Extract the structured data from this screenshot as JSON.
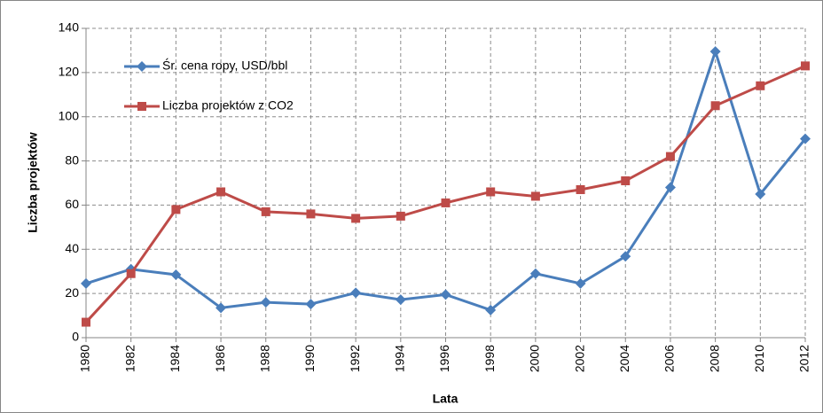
{
  "chart_data": {
    "type": "line",
    "categories": [
      "1980",
      "1982",
      "1984",
      "1986",
      "1988",
      "1990",
      "1992",
      "1994",
      "1996",
      "1998",
      "2000",
      "2002",
      "2004",
      "2006",
      "2008",
      "2010",
      "2012"
    ],
    "series": [
      {
        "name": "Śr. cena ropy, USD/bbl",
        "color": "#4a7ebb",
        "marker": "diamond",
        "values": [
          24.5,
          31,
          28.5,
          13.5,
          16,
          15.2,
          20.3,
          17.2,
          19.5,
          12.5,
          29,
          24.5,
          36.8,
          68,
          129.5,
          65,
          90
        ]
      },
      {
        "name": "Liczba projektów z CO2",
        "color": "#be4b48",
        "marker": "square",
        "values": [
          7,
          29,
          58,
          66,
          57,
          56,
          54,
          55,
          61,
          66,
          64,
          67,
          71,
          82,
          105,
          114,
          123
        ]
      }
    ],
    "ylim": [
      0,
      140
    ],
    "yticks": [
      0,
      20,
      40,
      60,
      80,
      100,
      120,
      140
    ],
    "xlabel": "Lata",
    "ylabel": "Liczba projektów",
    "grid": true,
    "legend": "top-left"
  }
}
